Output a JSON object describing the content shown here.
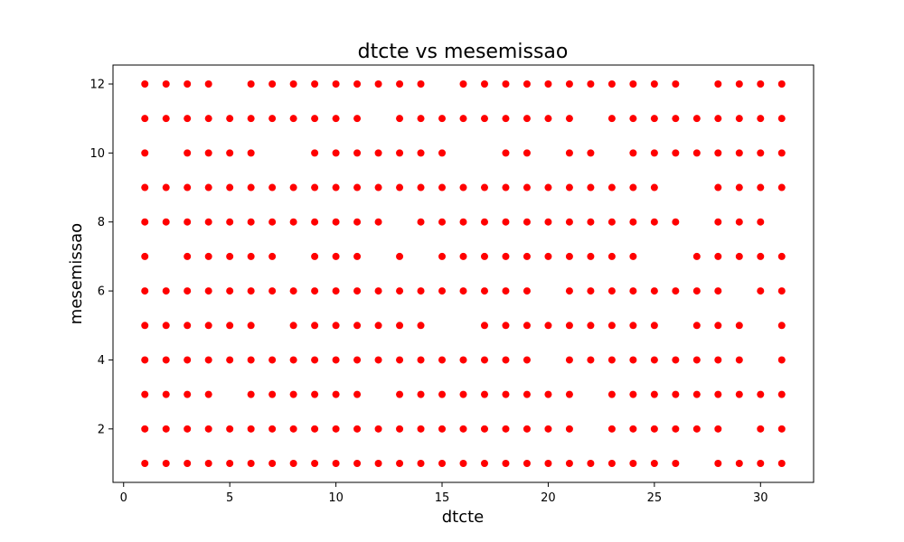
{
  "chart_data": {
    "type": "scatter",
    "title": "dtcte vs mesemissao",
    "xlabel": "dtcte",
    "ylabel": "mesemissao",
    "xlim": [
      -0.5,
      32.5
    ],
    "ylim": [
      0.45,
      12.55
    ],
    "xticks": [
      0,
      5,
      10,
      15,
      20,
      25,
      30
    ],
    "yticks": [
      2,
      4,
      6,
      8,
      10,
      12
    ],
    "grid": false,
    "marker_color": "#ff0000",
    "points_by_month": {
      "12": [
        1,
        2,
        3,
        4,
        6,
        7,
        8,
        9,
        10,
        11,
        12,
        13,
        14,
        16,
        17,
        18,
        19,
        20,
        21,
        22,
        23,
        24,
        25,
        26,
        28,
        29,
        30,
        31
      ],
      "11": [
        1,
        2,
        3,
        4,
        5,
        6,
        7,
        8,
        9,
        10,
        11,
        13,
        14,
        15,
        16,
        17,
        18,
        19,
        20,
        21,
        23,
        24,
        25,
        26,
        27,
        28,
        29,
        30,
        31
      ],
      "10": [
        1,
        3,
        4,
        5,
        6,
        9,
        10,
        11,
        12,
        13,
        14,
        15,
        18,
        19,
        21,
        22,
        24,
        25,
        26,
        27,
        28,
        29,
        30,
        31
      ],
      "9": [
        1,
        2,
        3,
        4,
        5,
        6,
        7,
        8,
        9,
        10,
        11,
        12,
        13,
        14,
        15,
        16,
        17,
        18,
        19,
        20,
        21,
        22,
        23,
        24,
        25,
        28,
        29,
        30,
        31
      ],
      "8": [
        1,
        2,
        3,
        4,
        5,
        6,
        7,
        8,
        9,
        10,
        11,
        12,
        14,
        15,
        16,
        17,
        18,
        19,
        20,
        21,
        22,
        23,
        24,
        25,
        26,
        28,
        29,
        30
      ],
      "7": [
        1,
        3,
        4,
        5,
        6,
        7,
        9,
        10,
        11,
        13,
        15,
        16,
        17,
        18,
        19,
        20,
        21,
        22,
        23,
        24,
        27,
        28,
        29,
        30,
        31
      ],
      "6": [
        1,
        2,
        3,
        4,
        5,
        6,
        7,
        8,
        9,
        10,
        11,
        12,
        13,
        14,
        15,
        16,
        17,
        18,
        19,
        21,
        22,
        23,
        24,
        25,
        26,
        27,
        28,
        30,
        31
      ],
      "5": [
        1,
        2,
        3,
        4,
        5,
        6,
        8,
        9,
        10,
        11,
        12,
        13,
        14,
        17,
        18,
        19,
        20,
        21,
        22,
        23,
        24,
        25,
        27,
        28,
        29,
        31
      ],
      "4": [
        1,
        2,
        3,
        4,
        5,
        6,
        7,
        8,
        9,
        10,
        11,
        12,
        13,
        14,
        15,
        16,
        17,
        18,
        19,
        21,
        22,
        23,
        24,
        25,
        26,
        27,
        28,
        29,
        31
      ],
      "3": [
        1,
        2,
        3,
        4,
        6,
        7,
        8,
        9,
        10,
        11,
        13,
        14,
        15,
        16,
        17,
        18,
        19,
        20,
        21,
        23,
        24,
        25,
        26,
        27,
        28,
        29,
        30,
        31
      ],
      "2": [
        1,
        2,
        3,
        4,
        5,
        6,
        7,
        8,
        9,
        10,
        11,
        12,
        13,
        14,
        15,
        16,
        17,
        18,
        19,
        20,
        21,
        23,
        24,
        25,
        26,
        27,
        28,
        30,
        31
      ],
      "1": [
        1,
        2,
        3,
        4,
        5,
        6,
        7,
        8,
        9,
        10,
        11,
        12,
        13,
        14,
        15,
        16,
        17,
        18,
        19,
        20,
        21,
        22,
        23,
        24,
        25,
        26,
        28,
        29,
        30,
        31
      ]
    }
  }
}
